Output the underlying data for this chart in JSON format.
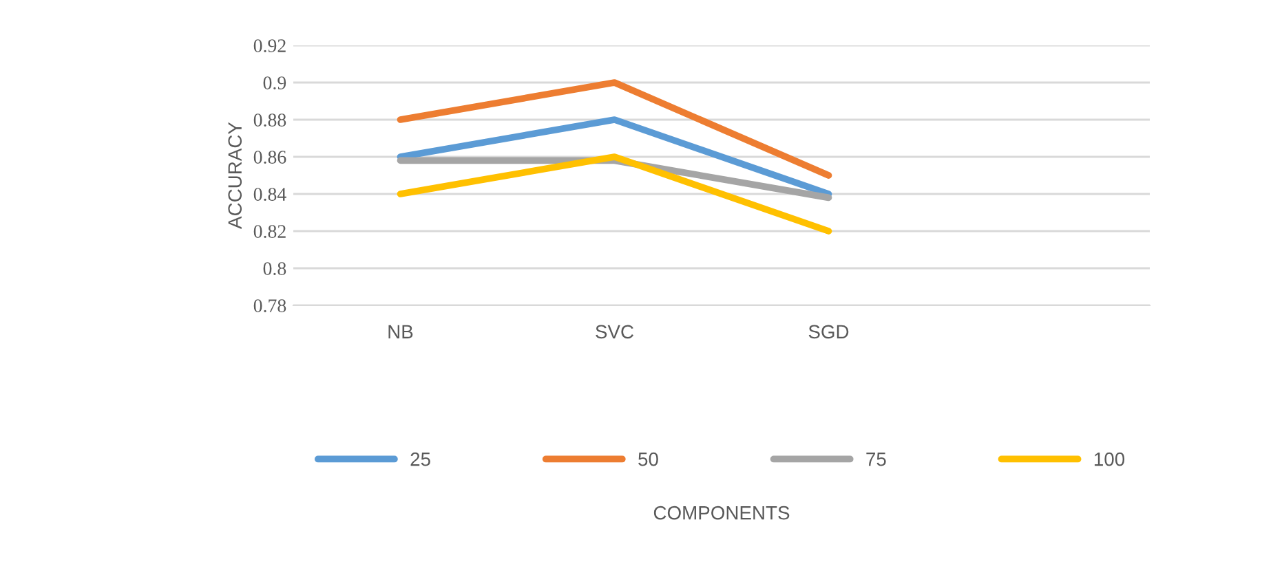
{
  "chart_data": {
    "type": "line",
    "annotations": [
      "COMPONENTS"
    ],
    "ylabel": "ACCURACY",
    "categories": [
      "NB",
      "SVC",
      "SGD",
      null
    ],
    "series": [
      {
        "name": "25",
        "color": "#5b9bd5",
        "values": [
          0.86,
          0.88,
          0.84,
          null
        ]
      },
      {
        "name": "50",
        "color": "#ed7d31",
        "values": [
          0.88,
          0.9,
          0.85,
          null
        ]
      },
      {
        "name": "75",
        "color": "#a5a5a5",
        "values": [
          0.858,
          0.858,
          0.838,
          null
        ]
      },
      {
        "name": "100",
        "color": "#ffc000",
        "values": [
          0.84,
          0.86,
          0.82,
          null
        ]
      }
    ],
    "ylim": [
      0.78,
      0.92
    ],
    "yticks": [
      0.78,
      0.8,
      0.82,
      0.84,
      0.86,
      0.88,
      0.9,
      0.92
    ],
    "grid": "y",
    "legend": "bottom",
    "marker": "none",
    "line_style": "solid"
  }
}
